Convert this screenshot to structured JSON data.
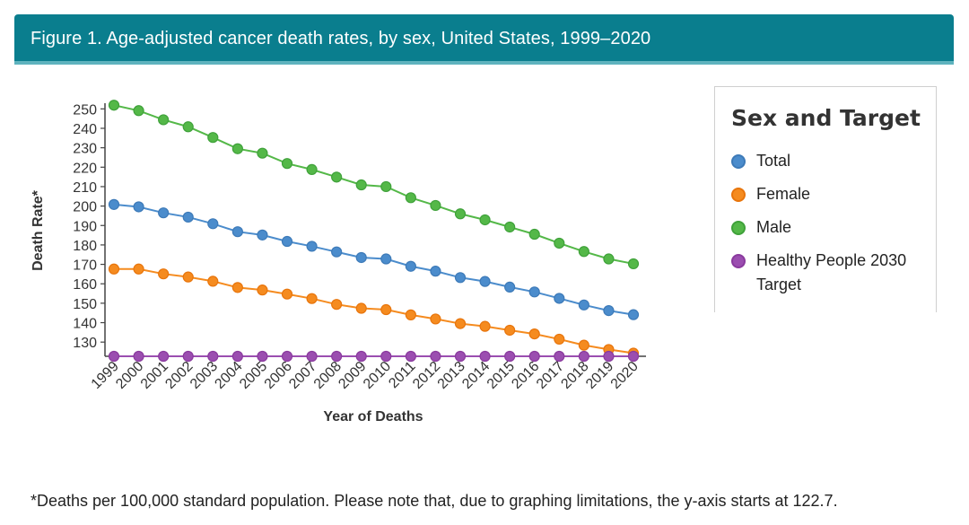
{
  "header": {
    "title": "Figure 1. Age-adjusted cancer death rates, by sex, United States, 1999–2020"
  },
  "legend": {
    "title": "Sex and Target",
    "items": [
      {
        "label": "Total",
        "color": "#3d7ab8",
        "fill": "#4b8ccc"
      },
      {
        "label": "Female",
        "color": "#e8750c",
        "fill": "#f58b1f"
      },
      {
        "label": "Male",
        "color": "#3fa13a",
        "fill": "#54b848"
      },
      {
        "label": "Healthy People 2030 Target",
        "color": "#8a3a9e",
        "fill": "#9b4eb0"
      }
    ]
  },
  "footnote": "*Deaths per 100,000 standard population. Please note that, due to graphing limitations, the y-axis starts at 122.7.",
  "chart_data": {
    "type": "line",
    "title": "Age-adjusted cancer death rates, by sex, United States, 1999–2020",
    "xlabel": "Year of Deaths",
    "ylabel": "Death Rate*",
    "ylim": [
      122.7,
      252
    ],
    "yticks": [
      130,
      140,
      150,
      160,
      170,
      180,
      190,
      200,
      210,
      220,
      230,
      240,
      250
    ],
    "categories": [
      "1999",
      "2000",
      "2001",
      "2002",
      "2003",
      "2004",
      "2005",
      "2006",
      "2007",
      "2008",
      "2009",
      "2010",
      "2011",
      "2012",
      "2013",
      "2014",
      "2015",
      "2016",
      "2017",
      "2018",
      "2019",
      "2020"
    ],
    "series": [
      {
        "name": "Total",
        "values": [
          200.8,
          199.6,
          196.5,
          194.3,
          190.9,
          186.8,
          185.1,
          181.8,
          179.3,
          176.4,
          173.5,
          172.8,
          169.0,
          166.5,
          163.2,
          161.2,
          158.3,
          155.8,
          152.5,
          149.1,
          146.2,
          144.1
        ]
      },
      {
        "name": "Female",
        "values": [
          167.6,
          167.6,
          165.1,
          163.5,
          161.3,
          158.1,
          156.8,
          154.7,
          152.4,
          149.4,
          147.4,
          146.7,
          144.0,
          141.9,
          139.5,
          138.1,
          136.1,
          134.2,
          131.5,
          128.4,
          126.2,
          124.3
        ]
      },
      {
        "name": "Male",
        "values": [
          251.9,
          249.1,
          244.4,
          240.8,
          235.3,
          229.5,
          227.2,
          221.9,
          218.8,
          214.9,
          210.9,
          210.0,
          204.3,
          200.3,
          196.0,
          192.9,
          189.2,
          185.5,
          180.9,
          176.6,
          172.8,
          170.3
        ]
      },
      {
        "name": "Healthy People 2030 Target",
        "values": [
          122.7,
          122.7,
          122.7,
          122.7,
          122.7,
          122.7,
          122.7,
          122.7,
          122.7,
          122.7,
          122.7,
          122.7,
          122.7,
          122.7,
          122.7,
          122.7,
          122.7,
          122.7,
          122.7,
          122.7,
          122.7,
          122.7
        ]
      }
    ]
  }
}
